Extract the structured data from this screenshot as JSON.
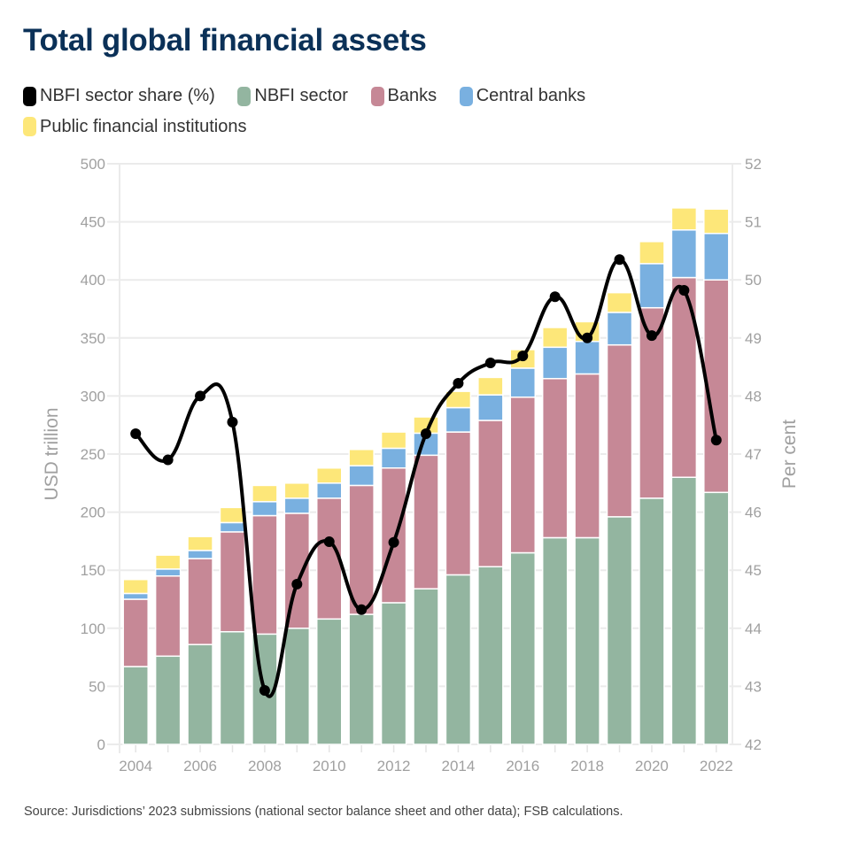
{
  "title": "Total global financial assets",
  "legend": [
    {
      "label": "NBFI sector share (%)",
      "color": "#000000",
      "key": "share"
    },
    {
      "label": "NBFI sector",
      "color": "#93b5a0",
      "key": "nbfi"
    },
    {
      "label": "Banks",
      "color": "#c68896",
      "key": "banks"
    },
    {
      "label": "Central banks",
      "color": "#79b0e0",
      "key": "central"
    },
    {
      "label": "Public financial institutions",
      "color": "#fde779",
      "key": "public"
    }
  ],
  "source": "Source: Jurisdictions’ 2023 submissions (national sector balance sheet and other data); FSB calculations.",
  "chart_data": {
    "type": "bar",
    "subtype": "stacked bar with line on secondary axis",
    "title": "Total global financial assets",
    "categories": [
      "2004",
      "2005",
      "2006",
      "2007",
      "2008",
      "2009",
      "2010",
      "2011",
      "2012",
      "2013",
      "2014",
      "2015",
      "2016",
      "2017",
      "2018",
      "2019",
      "2020",
      "2021",
      "2022"
    ],
    "x_tick_labels": [
      "2004",
      "2006",
      "2008",
      "2010",
      "2012",
      "2014",
      "2016",
      "2018",
      "2020",
      "2022"
    ],
    "ylabel": "USD trillion",
    "ylim": [
      0,
      500
    ],
    "yticks": [
      0,
      50,
      100,
      150,
      200,
      250,
      300,
      350,
      400,
      450,
      500
    ],
    "y2label": "Per cent",
    "y2lim": [
      42,
      52
    ],
    "y2ticks": [
      42,
      43,
      44,
      45,
      46,
      47,
      48,
      49,
      50,
      51,
      52
    ],
    "grid": true,
    "legend_position": "top-left",
    "series": [
      {
        "name": "NBFI sector",
        "type": "bar",
        "axis": "left",
        "color": "#93b5a0",
        "values": [
          67,
          76,
          86,
          97,
          95,
          100,
          108,
          112,
          122,
          134,
          146,
          153,
          165,
          178,
          178,
          196,
          212,
          230,
          217
        ]
      },
      {
        "name": "Banks",
        "type": "bar",
        "axis": "left",
        "color": "#c68896",
        "values": [
          58,
          69,
          74,
          86,
          102,
          99,
          104,
          111,
          116,
          115,
          123,
          126,
          134,
          137,
          141,
          148,
          164,
          172,
          183
        ]
      },
      {
        "name": "Central banks",
        "type": "bar",
        "axis": "left",
        "color": "#79b0e0",
        "values": [
          5,
          6,
          7,
          8,
          12,
          13,
          13,
          17,
          17,
          19,
          21,
          22,
          25,
          27,
          28,
          28,
          38,
          41,
          40
        ]
      },
      {
        "name": "Public financial institutions",
        "type": "bar",
        "axis": "left",
        "color": "#fde779",
        "values": [
          12,
          12,
          12,
          13,
          14,
          13,
          13,
          14,
          14,
          14,
          14,
          15,
          16,
          17,
          17,
          17,
          19,
          19,
          21
        ]
      },
      {
        "name": "NBFI sector share (%)",
        "type": "line",
        "axis": "right",
        "color": "#000000",
        "values": [
          47.35,
          46.9,
          48.0,
          47.55,
          42.93,
          44.76,
          45.49,
          44.32,
          45.48,
          47.35,
          48.22,
          48.57,
          48.69,
          49.71,
          49.0,
          50.35,
          49.04,
          49.82,
          47.24
        ]
      }
    ]
  }
}
